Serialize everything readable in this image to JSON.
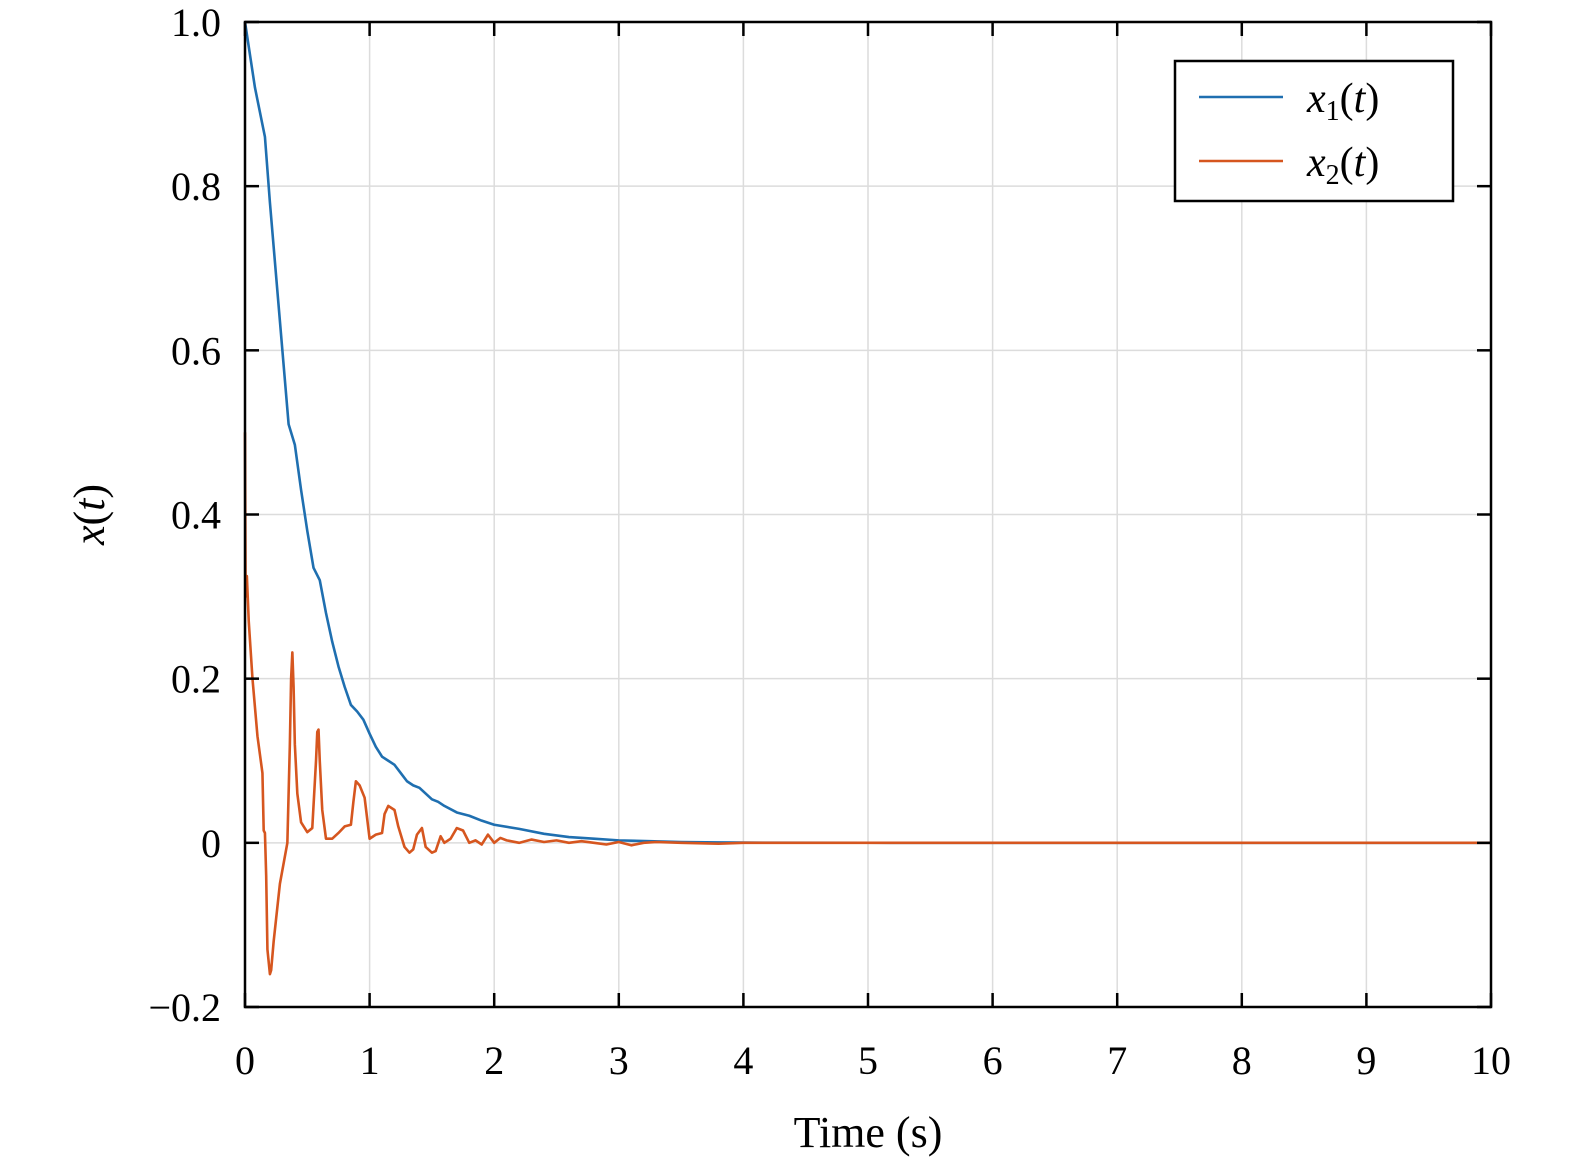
{
  "chart_data": {
    "type": "line",
    "xlabel": "Time (s)",
    "ylabel": "x(t)",
    "xlim": [
      0,
      10
    ],
    "ylim": [
      -0.2,
      1.0
    ],
    "grid": true,
    "legend_position": "top-right",
    "x_ticks": [
      0,
      1,
      2,
      3,
      4,
      5,
      6,
      7,
      8,
      9,
      10
    ],
    "x_tick_labels": [
      "0",
      "1",
      "2",
      "3",
      "4",
      "5",
      "6",
      "7",
      "8",
      "9",
      "10"
    ],
    "y_ticks": [
      -0.2,
      0,
      0.2,
      0.4,
      0.6,
      0.8,
      1.0
    ],
    "y_tick_labels": [
      "−0.2",
      "0",
      "0.2",
      "0.4",
      "0.6",
      "0.8",
      "1.0"
    ],
    "series": [
      {
        "name": "x1(t)",
        "legend_base": "x",
        "legend_sub": "1",
        "legend_suffix": "(t)",
        "color": "#1f6fb0",
        "x": [
          0,
          0.08,
          0.16,
          0.2,
          0.25,
          0.3,
          0.35,
          0.4,
          0.45,
          0.5,
          0.55,
          0.6,
          0.65,
          0.7,
          0.75,
          0.8,
          0.85,
          0.9,
          0.95,
          1.0,
          1.05,
          1.1,
          1.15,
          1.2,
          1.25,
          1.3,
          1.35,
          1.4,
          1.45,
          1.5,
          1.55,
          1.6,
          1.7,
          1.8,
          1.9,
          2.0,
          2.2,
          2.4,
          2.6,
          2.8,
          3.0,
          3.25,
          3.5,
          3.8,
          4.0,
          5.0,
          6.0,
          7.0,
          8.0,
          9.0,
          10.0
        ],
        "y": [
          1.0,
          0.92,
          0.86,
          0.78,
          0.69,
          0.6,
          0.51,
          0.485,
          0.43,
          0.38,
          0.335,
          0.32,
          0.28,
          0.245,
          0.215,
          0.19,
          0.168,
          0.16,
          0.15,
          0.133,
          0.117,
          0.105,
          0.1,
          0.095,
          0.085,
          0.075,
          0.07,
          0.067,
          0.06,
          0.053,
          0.05,
          0.045,
          0.037,
          0.033,
          0.027,
          0.022,
          0.017,
          0.011,
          0.007,
          0.005,
          0.003,
          0.002,
          0.001,
          0.0005,
          0.0003,
          0.0001,
          0,
          0,
          0,
          0,
          0
        ]
      },
      {
        "name": "x2(t)",
        "legend_base": "x",
        "legend_sub": "2",
        "legend_suffix": "(t)",
        "color": "#d6561f",
        "x": [
          0,
          0.005,
          0.015,
          0.03,
          0.06,
          0.1,
          0.14,
          0.15,
          0.16,
          0.17,
          0.18,
          0.2,
          0.21,
          0.23,
          0.28,
          0.34,
          0.36,
          0.37,
          0.38,
          0.39,
          0.4,
          0.42,
          0.45,
          0.5,
          0.54,
          0.57,
          0.58,
          0.59,
          0.6,
          0.62,
          0.65,
          0.7,
          0.75,
          0.8,
          0.85,
          0.87,
          0.89,
          0.92,
          0.96,
          1.0,
          1.05,
          1.1,
          1.12,
          1.15,
          1.2,
          1.23,
          1.28,
          1.32,
          1.35,
          1.38,
          1.42,
          1.45,
          1.5,
          1.53,
          1.57,
          1.6,
          1.65,
          1.7,
          1.75,
          1.8,
          1.85,
          1.9,
          1.95,
          2.0,
          2.05,
          2.1,
          2.2,
          2.3,
          2.4,
          2.5,
          2.6,
          2.7,
          2.8,
          2.9,
          3.0,
          3.1,
          3.2,
          3.3,
          3.5,
          3.8,
          4.0,
          5.0,
          6.0,
          7.0,
          8.0,
          9.0,
          10.0
        ],
        "y": [
          0.5,
          0.3,
          0.325,
          0.27,
          0.2,
          0.13,
          0.085,
          0.015,
          0.012,
          -0.04,
          -0.13,
          -0.16,
          -0.155,
          -0.12,
          -0.05,
          0.0,
          0.12,
          0.2,
          0.232,
          0.19,
          0.12,
          0.06,
          0.025,
          0.013,
          0.018,
          0.1,
          0.135,
          0.138,
          0.1,
          0.04,
          0.005,
          0.005,
          0.012,
          0.02,
          0.022,
          0.05,
          0.075,
          0.07,
          0.055,
          0.005,
          0.01,
          0.012,
          0.035,
          0.045,
          0.04,
          0.02,
          -0.005,
          -0.012,
          -0.008,
          0.01,
          0.018,
          -0.005,
          -0.012,
          -0.01,
          0.008,
          0.0,
          0.005,
          0.018,
          0.015,
          0.0,
          0.003,
          -0.002,
          0.01,
          0.0,
          0.006,
          0.003,
          0.0,
          0.004,
          0.001,
          0.003,
          0.0,
          0.002,
          0.0,
          -0.002,
          0.001,
          -0.003,
          0.0,
          0.001,
          0.0,
          -0.001,
          0.0,
          0.0,
          0.0,
          0.0,
          0.0,
          0.0,
          0.0
        ]
      }
    ]
  }
}
